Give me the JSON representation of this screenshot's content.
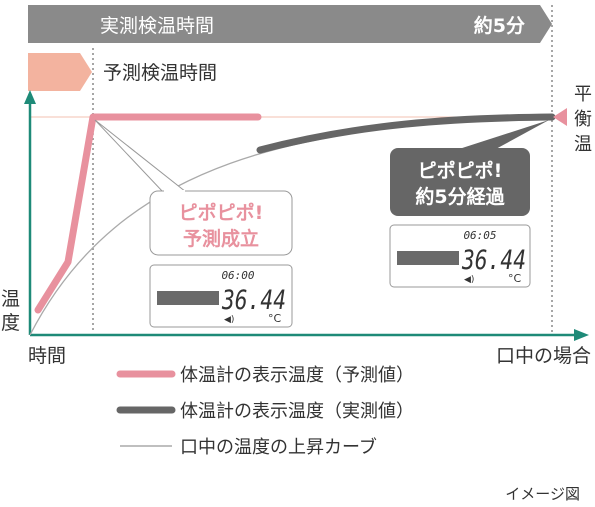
{
  "top_bar": {
    "label": "実測検温時間",
    "duration": "約5分"
  },
  "predict_bar": {
    "label": "予測検温時間"
  },
  "axes": {
    "y_label_line1": "温",
    "y_label_line2": "度",
    "x_label": "時間",
    "x_end_label": "口中の場合",
    "right_label": [
      "平",
      "衡",
      "温"
    ]
  },
  "callout_predict": {
    "line1": "ピポピポ!",
    "line2": "予測成立"
  },
  "callout_actual": {
    "line1": "ピポピポ!",
    "line2": "約5分経過"
  },
  "display_predict": {
    "time": "06:00",
    "temp": "36.44",
    "unit": "°C"
  },
  "display_actual": {
    "time": "06:05",
    "temp": "36.44",
    "unit": "°C"
  },
  "legend": [
    {
      "label": "体温計の表示温度（予測値）",
      "color": "#e8919e"
    },
    {
      "label": "体温計の表示温度（実測値）",
      "color": "#666666"
    },
    {
      "label": "口中の温度の上昇カーブ",
      "color": "#aaaaaa"
    }
  ],
  "note": "イメージ図",
  "colors": {
    "axis": "#1e8a78",
    "pink": "#e8919e",
    "dark": "#666666",
    "bar": "#8a8a8a"
  }
}
